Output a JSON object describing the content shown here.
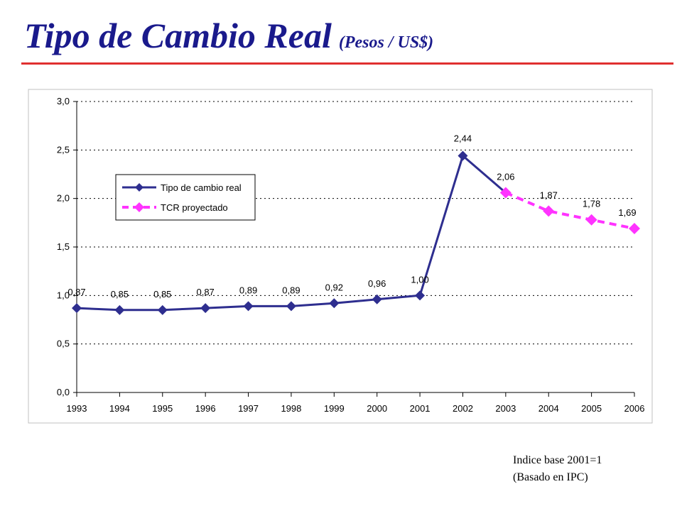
{
  "slide": {
    "title": "Tipo de Cambio Real",
    "subtitle": "(Pesos / US$)",
    "title_color": "#1a1a8c",
    "rule_color": "#e03030",
    "notes": [
      "Indice base 2001=1",
      "(Basado en IPC)"
    ]
  },
  "chart_data": {
    "type": "line",
    "title": "",
    "xlabel": "",
    "ylabel": "",
    "categories": [
      "1993",
      "1994",
      "1995",
      "1996",
      "1997",
      "1998",
      "1999",
      "2000",
      "2001",
      "2002",
      "2003",
      "2004",
      "2005",
      "2006"
    ],
    "ylim": [
      0,
      3.0
    ],
    "y_ticks": [
      0,
      0.5,
      1.0,
      1.5,
      2.0,
      2.5,
      3.0
    ],
    "y_tick_labels": [
      "0,0",
      "0,5",
      "1,0",
      "1,5",
      "2,0",
      "2,5",
      "3,0"
    ],
    "grid": "horizontal-dotted",
    "legend_position": "upper-left",
    "series": [
      {
        "name": "Tipo de cambio real",
        "color": "#2e2e8f",
        "style": "solid",
        "marker": "diamond",
        "values": [
          0.87,
          0.85,
          0.85,
          0.87,
          0.89,
          0.89,
          0.92,
          0.96,
          1.0,
          2.44,
          2.06,
          null,
          null,
          null
        ],
        "labels": [
          "0,87",
          "0,85",
          "0,85",
          "0,87",
          "0,89",
          "0,89",
          "0,92",
          "0,96",
          "1,00",
          "2,44",
          "2,06",
          "",
          "",
          ""
        ]
      },
      {
        "name": "TCR proyectado",
        "color": "#ff33ff",
        "style": "dashed",
        "marker": "diamond",
        "values": [
          null,
          null,
          null,
          null,
          null,
          null,
          null,
          null,
          null,
          null,
          2.06,
          1.87,
          1.78,
          1.69
        ],
        "labels": [
          "",
          "",
          "",
          "",
          "",
          "",
          "",
          "",
          "",
          "",
          "",
          "1,87",
          "1,78",
          "1,69"
        ]
      }
    ]
  }
}
